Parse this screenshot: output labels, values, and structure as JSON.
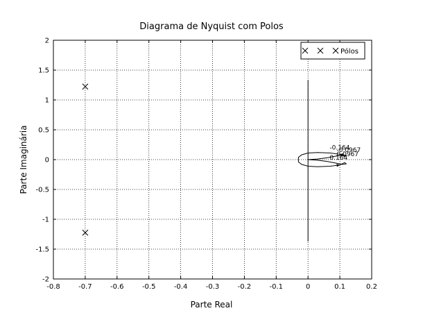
{
  "chart_data": {
    "type": "line",
    "title": "Diagrama de Nyquist com Polos",
    "xlabel": "Parte Real",
    "ylabel": "Parte Imaginária",
    "xlim": [
      -0.8,
      0.2
    ],
    "ylim": [
      -2,
      2
    ],
    "xticks": [
      "-0.8",
      "-0.7",
      "-0.6",
      "-0.5",
      "-0.4",
      "-0.3",
      "-0.2",
      "-0.1",
      "0",
      "0.1",
      "0.2"
    ],
    "yticks": [
      "2",
      "1.5",
      "1",
      "0.5",
      "0",
      "-0.5",
      "-1",
      "-1.5",
      "-2"
    ],
    "grid": true,
    "legend": {
      "placement": "top-right",
      "label": "Pólos"
    },
    "poles": [
      {
        "x": -0.7,
        "y": 1.224
      },
      {
        "x": -0.7,
        "y": -1.224
      }
    ],
    "vertical_segment": {
      "x": 0,
      "y_start": 1.33,
      "y_end": -1.37
    },
    "nyquist_curve": {
      "x": [
        0.0,
        0.03,
        0.06,
        0.09,
        0.11,
        0.12,
        0.115,
        0.1,
        0.07,
        0.03,
        0.0,
        -0.02,
        -0.03,
        -0.03,
        -0.02,
        0.0,
        0.03,
        0.07,
        0.1,
        0.115,
        0.12,
        0.11,
        0.09,
        0.06,
        0.03,
        0.0
      ],
      "y": [
        0.0,
        0.01,
        0.03,
        0.06,
        0.08,
        0.07,
        0.05,
        0.09,
        0.11,
        0.12,
        0.11,
        0.08,
        0.04,
        -0.04,
        -0.08,
        -0.11,
        -0.12,
        -0.11,
        -0.09,
        -0.05,
        -0.07,
        -0.08,
        -0.06,
        -0.03,
        -0.01,
        0.0
      ]
    },
    "annotations": [
      {
        "text": "-0.164",
        "x": 0.068,
        "y": 0.17
      },
      {
        "text": "-0.0967",
        "x": 0.09,
        "y": 0.13
      },
      {
        "text": "0.0967",
        "x": 0.09,
        "y": 0.06
      },
      {
        "text": "0.164",
        "x": 0.068,
        "y": 0.0
      }
    ]
  }
}
